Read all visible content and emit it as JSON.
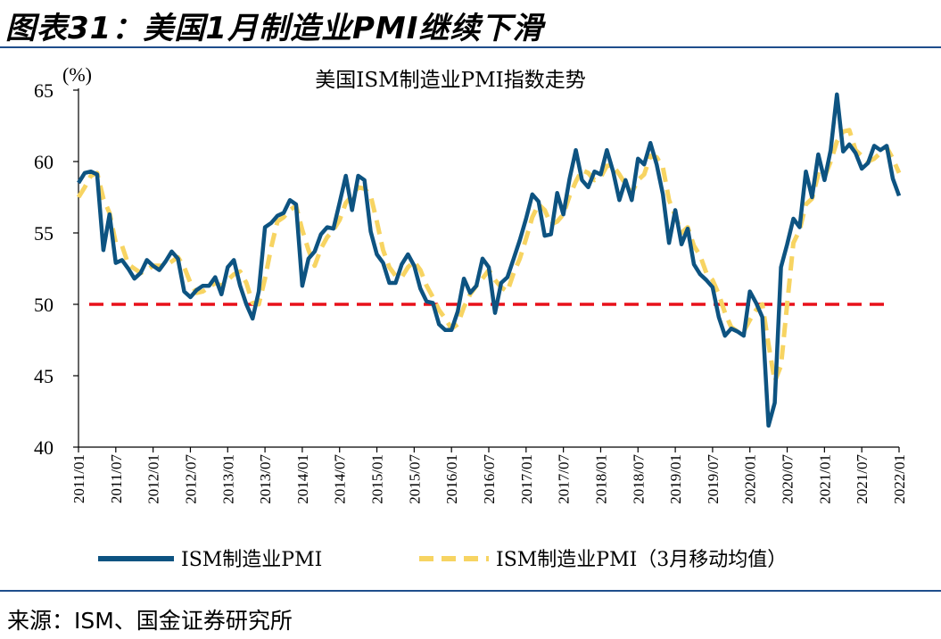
{
  "header": {
    "figure_title": "图表31：美国1月制造业PMI继续下滑"
  },
  "footer": {
    "source": "来源：ISM、国金证券研究所"
  },
  "colors": {
    "rule": "#1f4e8c",
    "pmi_line": "#0d5381",
    "ma_line": "#f7d462",
    "threshold": "#e8101a"
  },
  "chart_data": {
    "type": "line",
    "title": "美国ISM制造业PMI指数走势",
    "ylabel": "(%)",
    "xlabel": "",
    "ylim": [
      40,
      65
    ],
    "yticks": [
      40,
      45,
      50,
      55,
      60,
      65
    ],
    "x_tick_labels": [
      "2011/01",
      "2011/07",
      "2012/01",
      "2012/07",
      "2013/01",
      "2013/07",
      "2014/01",
      "2014/07",
      "2015/01",
      "2015/07",
      "2016/01",
      "2016/07",
      "2017/01",
      "2017/07",
      "2018/01",
      "2018/07",
      "2019/01",
      "2019/07",
      "2020/01",
      "2020/07",
      "2021/01",
      "2021/07",
      "2022/01"
    ],
    "x_start": "2011/01",
    "x_end": "2022/01",
    "reference_line": {
      "value": 50,
      "style": "dashed"
    },
    "series": [
      {
        "name": "ISM制造业PMI",
        "style": "solid",
        "values": [
          58.5,
          59.2,
          59.3,
          59.1,
          53.8,
          56.3,
          52.9,
          53.1,
          52.5,
          51.8,
          52.2,
          53.1,
          52.7,
          52.4,
          53.0,
          53.7,
          53.2,
          50.9,
          50.5,
          51.0,
          51.3,
          51.3,
          51.9,
          50.7,
          52.6,
          53.1,
          51.3,
          50.0,
          49.0,
          50.9,
          55.4,
          55.7,
          56.2,
          56.4,
          57.3,
          57.0,
          51.3,
          53.2,
          53.7,
          54.9,
          55.4,
          55.3,
          57.1,
          59.0,
          56.6,
          59.0,
          58.7,
          55.1,
          53.5,
          52.9,
          51.5,
          51.5,
          52.8,
          53.5,
          52.7,
          51.1,
          50.2,
          50.1,
          48.6,
          48.2,
          48.2,
          49.5,
          51.8,
          50.8,
          51.3,
          53.2,
          52.6,
          49.4,
          51.5,
          51.9,
          53.2,
          54.5,
          56.0,
          57.7,
          57.2,
          54.8,
          54.9,
          57.8,
          56.3,
          58.8,
          60.8,
          58.7,
          58.2,
          59.3,
          59.1,
          60.8,
          59.3,
          57.3,
          58.7,
          57.3,
          60.2,
          59.8,
          61.3,
          59.8,
          57.7,
          54.3,
          56.6,
          54.2,
          55.3,
          52.8,
          52.1,
          51.7,
          51.2,
          49.1,
          47.8,
          48.3,
          48.1,
          47.8,
          50.9,
          50.1,
          49.1,
          41.5,
          43.1,
          52.6,
          54.2,
          56.0,
          55.4,
          59.3,
          57.5,
          60.5,
          58.7,
          60.8,
          64.7,
          60.7,
          61.2,
          60.6,
          59.5,
          59.9,
          61.1,
          60.8,
          61.1,
          58.8,
          57.6
        ]
      },
      {
        "name": "ISM制造业PMI（3月移动均值）",
        "style": "dashed",
        "values": [
          57.5,
          58.2,
          59.0,
          59.2,
          57.4,
          56.4,
          54.3,
          54.1,
          52.8,
          52.5,
          52.2,
          52.4,
          52.7,
          52.7,
          52.7,
          53.0,
          53.3,
          52.6,
          51.5,
          50.8,
          50.9,
          51.2,
          51.5,
          51.3,
          51.7,
          52.1,
          52.3,
          51.5,
          50.1,
          50.0,
          51.8,
          54.0,
          55.8,
          56.1,
          56.6,
          56.9,
          55.2,
          53.8,
          52.7,
          53.9,
          54.7,
          55.2,
          55.9,
          57.1,
          57.6,
          58.2,
          58.1,
          57.6,
          55.8,
          53.8,
          52.6,
          52.0,
          51.9,
          52.6,
          53.0,
          52.4,
          51.3,
          50.5,
          49.6,
          49.0,
          48.3,
          48.6,
          49.8,
          50.7,
          51.3,
          51.8,
          52.4,
          51.7,
          51.2,
          50.9,
          52.2,
          53.2,
          54.6,
          56.1,
          57.0,
          56.6,
          55.6,
          55.8,
          56.3,
          57.6,
          58.6,
          59.4,
          59.2,
          58.7,
          58.9,
          59.7,
          59.7,
          59.1,
          58.4,
          57.8,
          58.7,
          59.1,
          60.4,
          60.3,
          59.6,
          57.3,
          56.2,
          55.0,
          55.4,
          54.1,
          53.4,
          52.2,
          51.7,
          50.7,
          49.4,
          48.4,
          48.1,
          48.1,
          48.9,
          49.6,
          50.0,
          47.2,
          44.6,
          45.7,
          50.0,
          54.3,
          55.2,
          57.0,
          57.4,
          59.1,
          58.9,
          60.0,
          61.4,
          62.1,
          62.2,
          60.8,
          60.4,
          60.0,
          60.2,
          60.6,
          61.0,
          60.2,
          59.2
        ]
      }
    ],
    "legend": [
      "ISM制造业PMI",
      "ISM制造业PMI（3月移动均值）"
    ],
    "legend_position": "bottom"
  }
}
